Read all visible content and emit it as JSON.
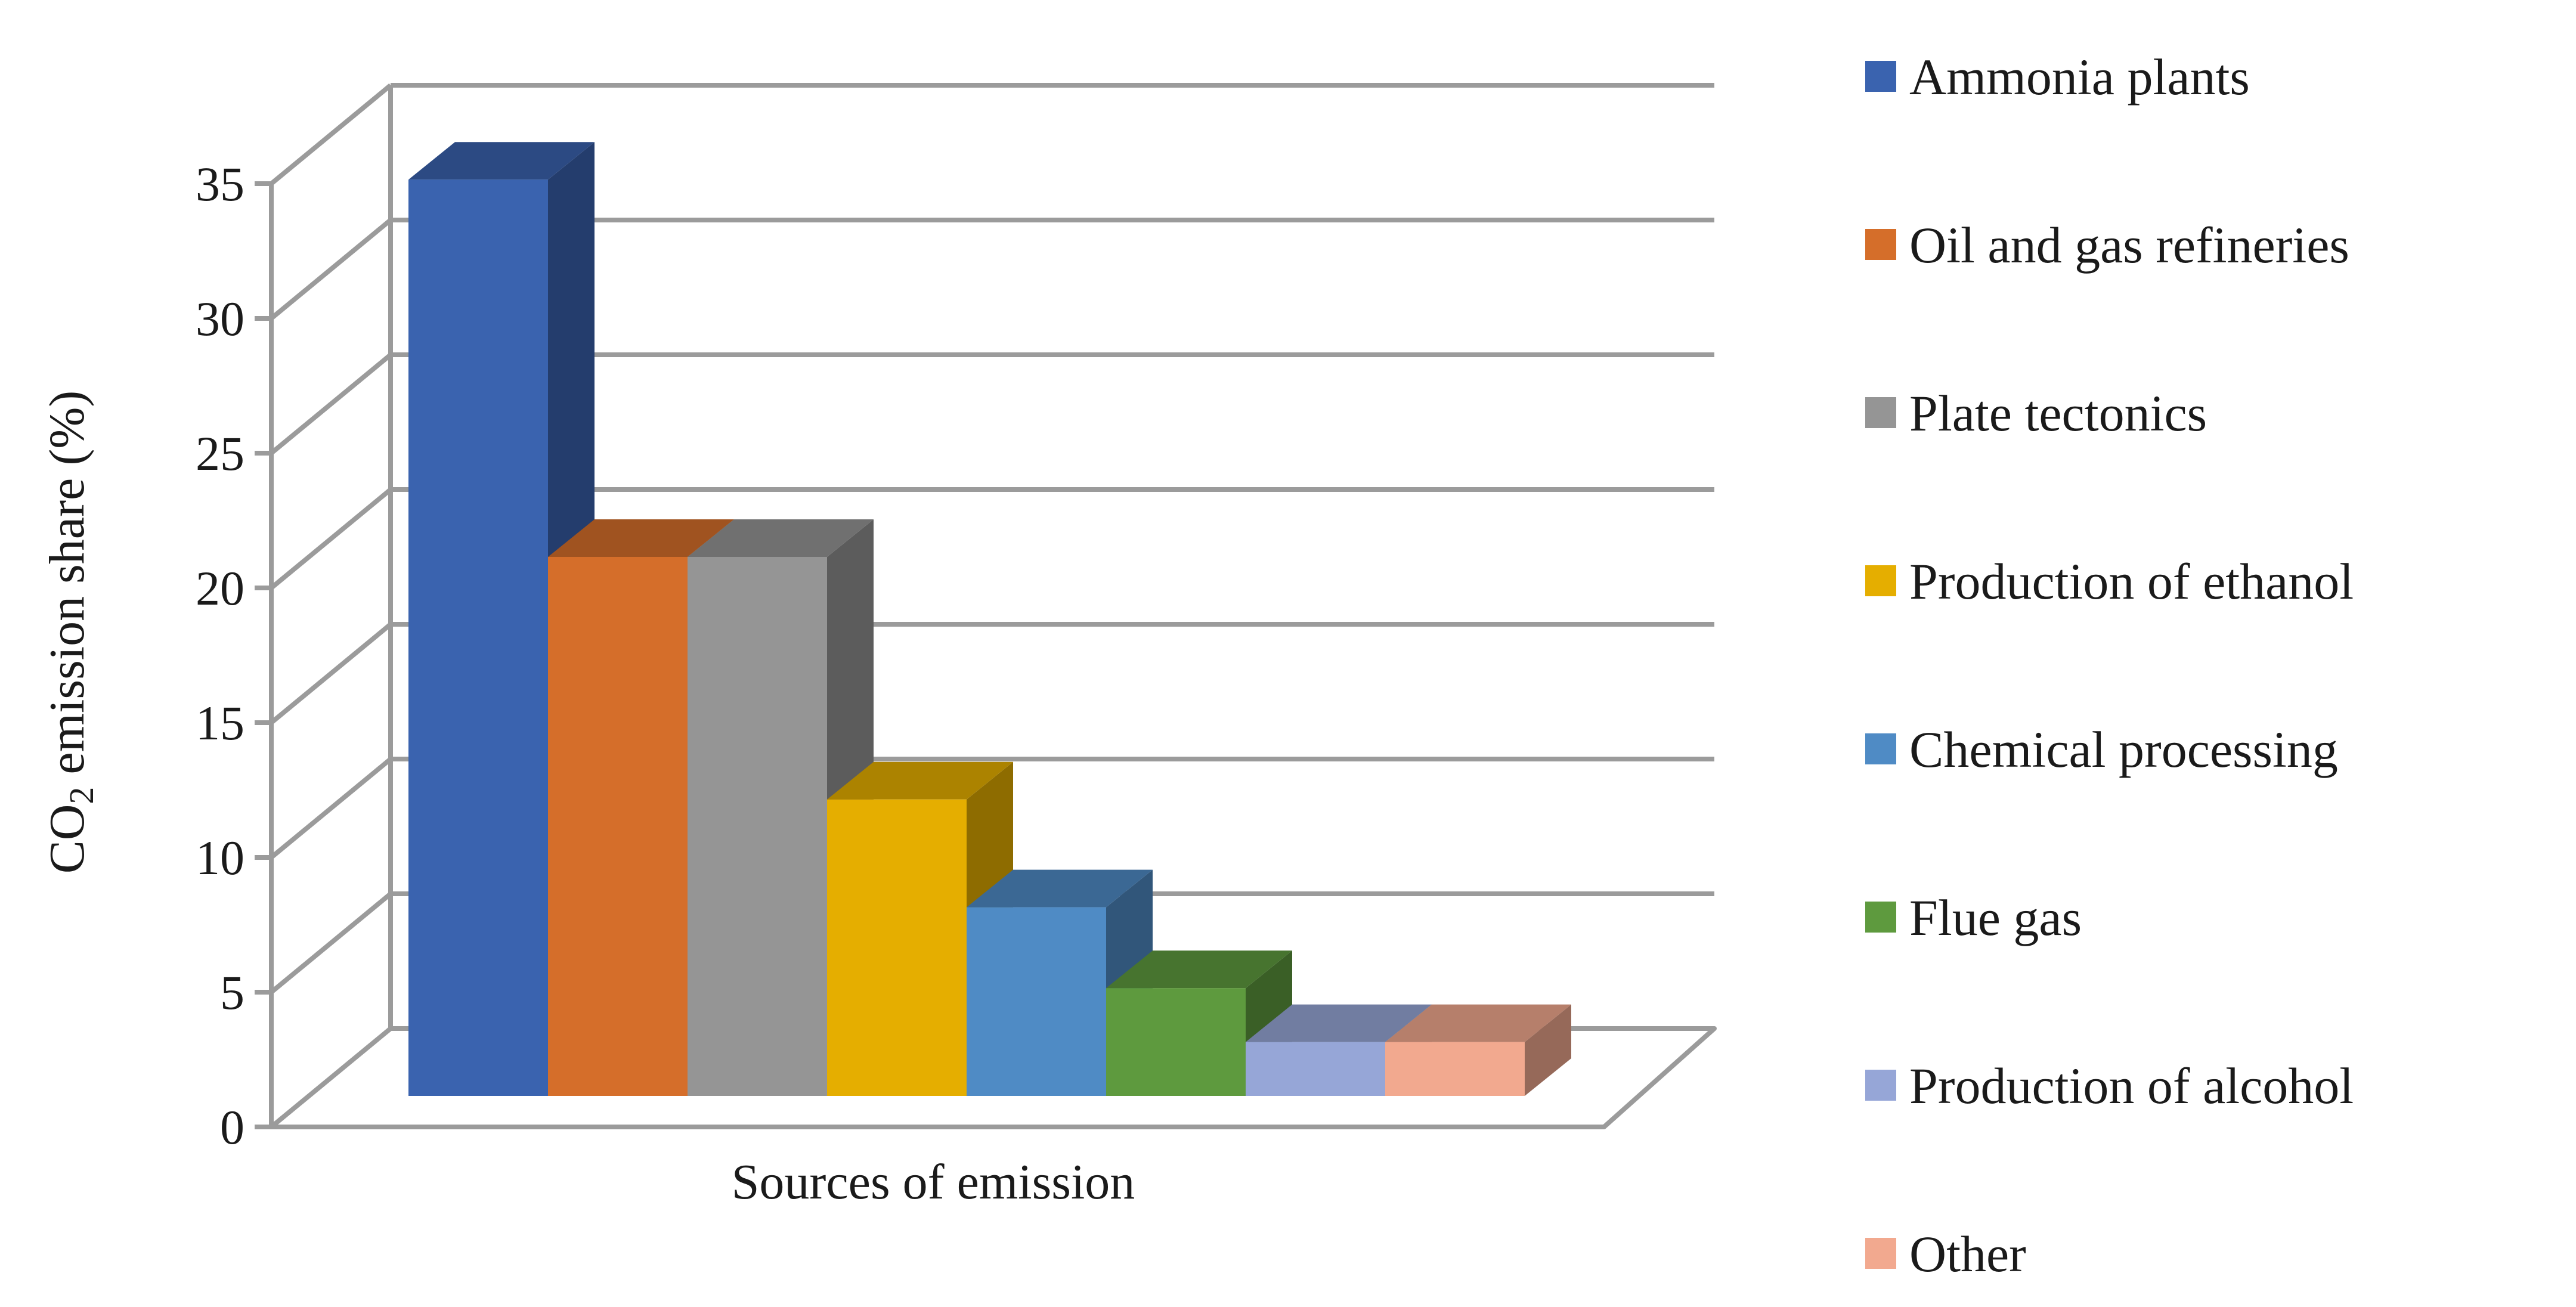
{
  "chart_data": {
    "type": "bar",
    "style": "3d-column",
    "xlabel": "Sources of emission",
    "ylabel": {
      "prefix": "CO",
      "subscript": "2",
      "suffix": " emission share (%)"
    },
    "ylim": [
      0,
      35
    ],
    "yticks": [
      0,
      5,
      10,
      15,
      20,
      25,
      30,
      35
    ],
    "grid": true,
    "legend_position": "right",
    "series": [
      {
        "name": "Ammonia plants",
        "value": 34,
        "color": "#3A63AF"
      },
      {
        "name": "Oil and gas refineries",
        "value": 20,
        "color": "#D56E2A"
      },
      {
        "name": "Plate tectonics",
        "value": 20,
        "color": "#959595"
      },
      {
        "name": "Production of ethanol",
        "value": 11,
        "color": "#E5AE00"
      },
      {
        "name": "Chemical processing",
        "value": 7,
        "color": "#4F8BC5"
      },
      {
        "name": "Flue gas",
        "value": 4,
        "color": "#5E9A3E"
      },
      {
        "name": "Production of alcohol",
        "value": 2,
        "color": "#96A6D7"
      },
      {
        "name": "Other",
        "value": 2,
        "color": "#F2A98F"
      }
    ]
  }
}
